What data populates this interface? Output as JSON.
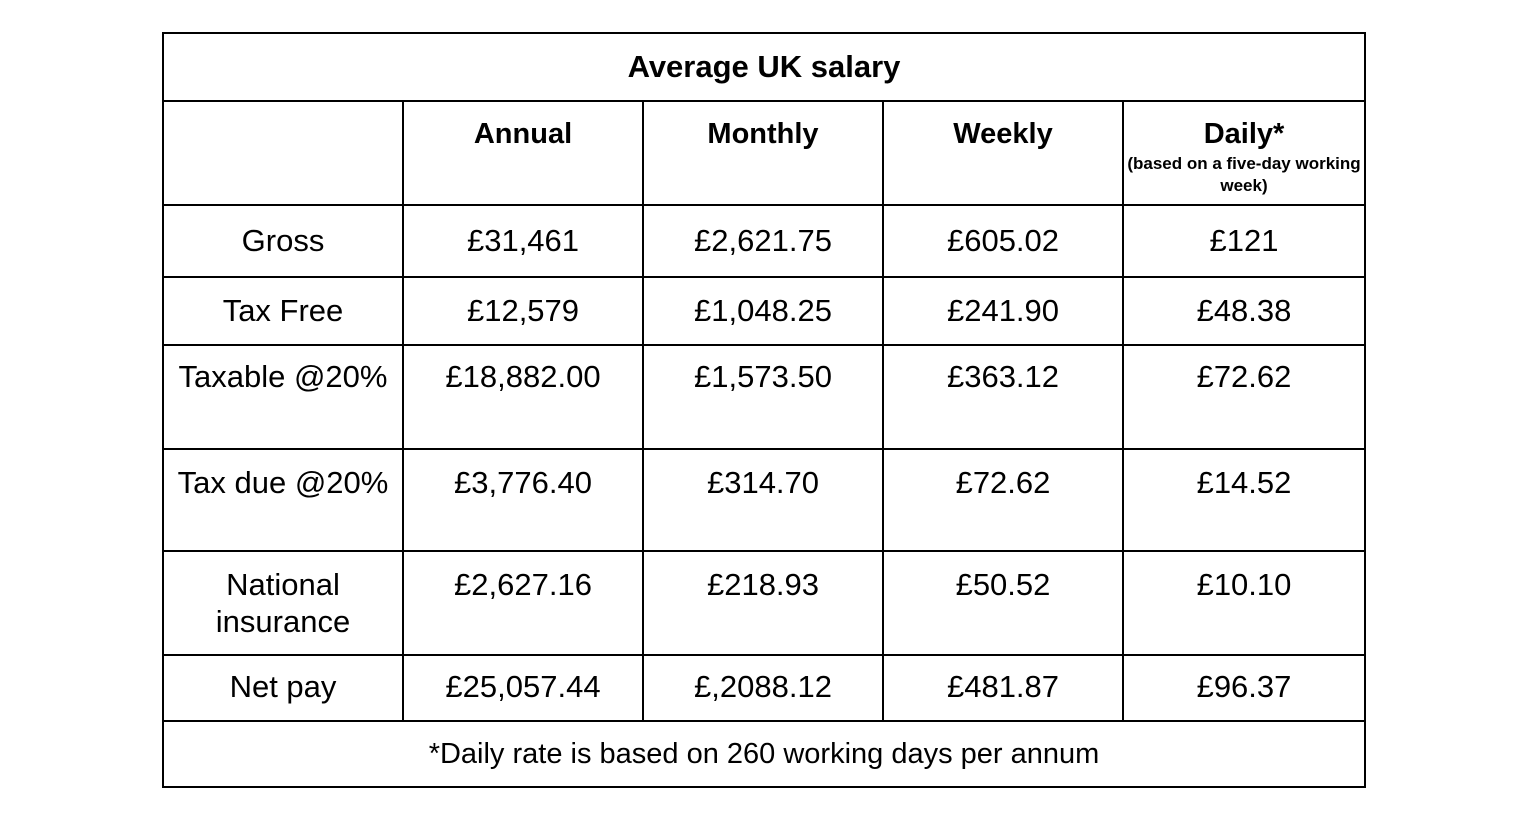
{
  "table": {
    "title": "Average UK salary",
    "columns": [
      "",
      "Annual",
      "Monthly",
      "Weekly",
      "Daily*"
    ],
    "daily_note": "(based on a five-day working week)",
    "rows": [
      {
        "label": "Gross",
        "annual": "£31,461",
        "monthly": "£2,621.75",
        "weekly": "£605.02",
        "daily": "£121"
      },
      {
        "label": "Tax Free",
        "annual": "£12,579",
        "monthly": "£1,048.25",
        "weekly": "£241.90",
        "daily": "£48.38"
      },
      {
        "label": "Taxable @20%",
        "annual": "£18,882.00",
        "monthly": "£1,573.50",
        "weekly": "£363.12",
        "daily": "£72.62"
      },
      {
        "label": "Tax due @20%",
        "annual": "£3,776.40",
        "monthly": "£314.70",
        "weekly": "£72.62",
        "daily": "£14.52"
      },
      {
        "label": "National insurance",
        "annual": "£2,627.16",
        "monthly": "£218.93",
        "weekly": "£50.52",
        "daily": "£10.10"
      },
      {
        "label": "Net pay",
        "annual": "£25,057.44",
        "monthly": "£,2088.12",
        "weekly": "£481.87",
        "daily": "£96.37"
      }
    ],
    "footnote": "*Daily rate is based on 260 working days per annum"
  }
}
